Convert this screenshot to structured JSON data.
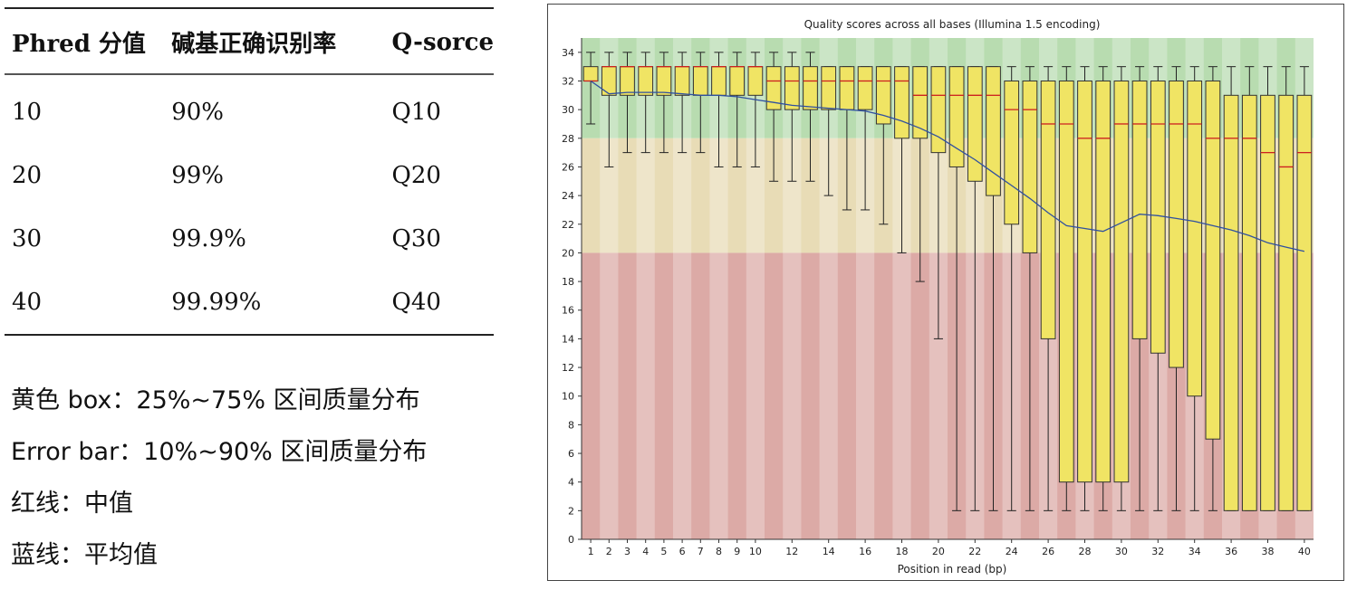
{
  "table": {
    "headers": [
      "Phred 分值",
      "碱基正确识别率",
      "Q-sorce"
    ],
    "rows": [
      [
        "10",
        "90%",
        "Q10"
      ],
      [
        "20",
        "99%",
        "Q20"
      ],
      [
        "30",
        "99.9%",
        "Q30"
      ],
      [
        "40",
        "99.99%",
        "Q40"
      ]
    ]
  },
  "notes": [
    "黄色 box：25%~75% 区间质量分布",
    "Error bar：10%~90% 区间质量分布",
    "红线：中值",
    "蓝线：平均值"
  ],
  "chart_data": {
    "type": "boxplot",
    "title": "Quality scores across all bases (Illumina 1.5 encoding)",
    "xlabel": "Position in read (bp)",
    "ylabel": "",
    "ylim": [
      0,
      35
    ],
    "yticks": [
      0,
      2,
      4,
      6,
      8,
      10,
      12,
      14,
      16,
      18,
      20,
      22,
      24,
      26,
      28,
      30,
      32,
      34
    ],
    "xtick_labels": [
      "1",
      "2",
      "3",
      "4",
      "5",
      "6",
      "7",
      "8",
      "9",
      "10",
      "12",
      "14",
      "16",
      "18",
      "20",
      "22",
      "24",
      "26",
      "28",
      "30",
      "32",
      "34",
      "36",
      "38",
      "40"
    ],
    "quality_zones": [
      {
        "name": "good",
        "from": 28,
        "to": 35,
        "color": "#b8dcb0"
      },
      {
        "name": "reasonable",
        "from": 20,
        "to": 28,
        "color": "#e8dcb6"
      },
      {
        "name": "poor",
        "from": 0,
        "to": 20,
        "color": "#dcaaa6"
      }
    ],
    "box_color": "#f0e464",
    "median_color": "#cc2020",
    "mean_color": "#3050a0",
    "positions": [
      1,
      2,
      3,
      4,
      5,
      6,
      7,
      8,
      9,
      10,
      11,
      12,
      13,
      14,
      15,
      16,
      17,
      18,
      19,
      20,
      21,
      22,
      23,
      24,
      25,
      26,
      27,
      28,
      29,
      30,
      31,
      32,
      33,
      34,
      35,
      36,
      37,
      38,
      39,
      40
    ],
    "whisker_low": [
      29,
      26,
      27,
      27,
      27,
      27,
      27,
      26,
      26,
      26,
      25,
      25,
      25,
      24,
      23,
      23,
      22,
      20,
      18,
      14,
      2,
      2,
      2,
      2,
      2,
      2,
      2,
      2,
      2,
      2,
      2,
      2,
      2,
      2,
      2,
      2,
      2,
      2,
      2,
      2
    ],
    "q1": [
      32,
      31,
      31,
      31,
      31,
      31,
      31,
      31,
      31,
      31,
      30,
      30,
      30,
      30,
      30,
      30,
      29,
      28,
      28,
      27,
      26,
      25,
      24,
      22,
      20,
      14,
      4,
      4,
      4,
      4,
      14,
      13,
      12,
      10,
      7,
      2,
      2,
      2,
      2,
      2
    ],
    "median": [
      32,
      33,
      33,
      33,
      33,
      33,
      33,
      33,
      33,
      33,
      32,
      32,
      32,
      32,
      32,
      32,
      32,
      32,
      31,
      31,
      31,
      31,
      31,
      30,
      30,
      29,
      29,
      28,
      28,
      29,
      29,
      29,
      29,
      29,
      28,
      28,
      28,
      27,
      26,
      27
    ],
    "q3": [
      33,
      33,
      33,
      33,
      33,
      33,
      33,
      33,
      33,
      33,
      33,
      33,
      33,
      33,
      33,
      33,
      33,
      33,
      33,
      33,
      33,
      33,
      33,
      32,
      32,
      32,
      32,
      32,
      32,
      32,
      32,
      32,
      32,
      32,
      32,
      31,
      31,
      31,
      31,
      31
    ],
    "whisker_high": [
      34,
      34,
      34,
      34,
      34,
      34,
      34,
      34,
      34,
      34,
      34,
      34,
      34,
      33,
      33,
      33,
      33,
      33,
      33,
      33,
      33,
      33,
      33,
      33,
      33,
      33,
      33,
      33,
      33,
      33,
      33,
      33,
      33,
      33,
      33,
      33,
      33,
      33,
      33,
      33
    ],
    "mean": [
      32,
      31.1,
      31.2,
      31.2,
      31.2,
      31.1,
      31,
      31,
      30.9,
      30.7,
      30.5,
      30.3,
      30.2,
      30.1,
      30,
      29.9,
      29.6,
      29.2,
      28.7,
      28.1,
      27.3,
      26.5,
      25.6,
      24.7,
      23.8,
      22.8,
      21.9,
      21.7,
      21.5,
      22.1,
      22.7,
      22.6,
      22.4,
      22.2,
      21.9,
      21.6,
      21.2,
      20.7,
      20.4,
      20.1
    ]
  }
}
